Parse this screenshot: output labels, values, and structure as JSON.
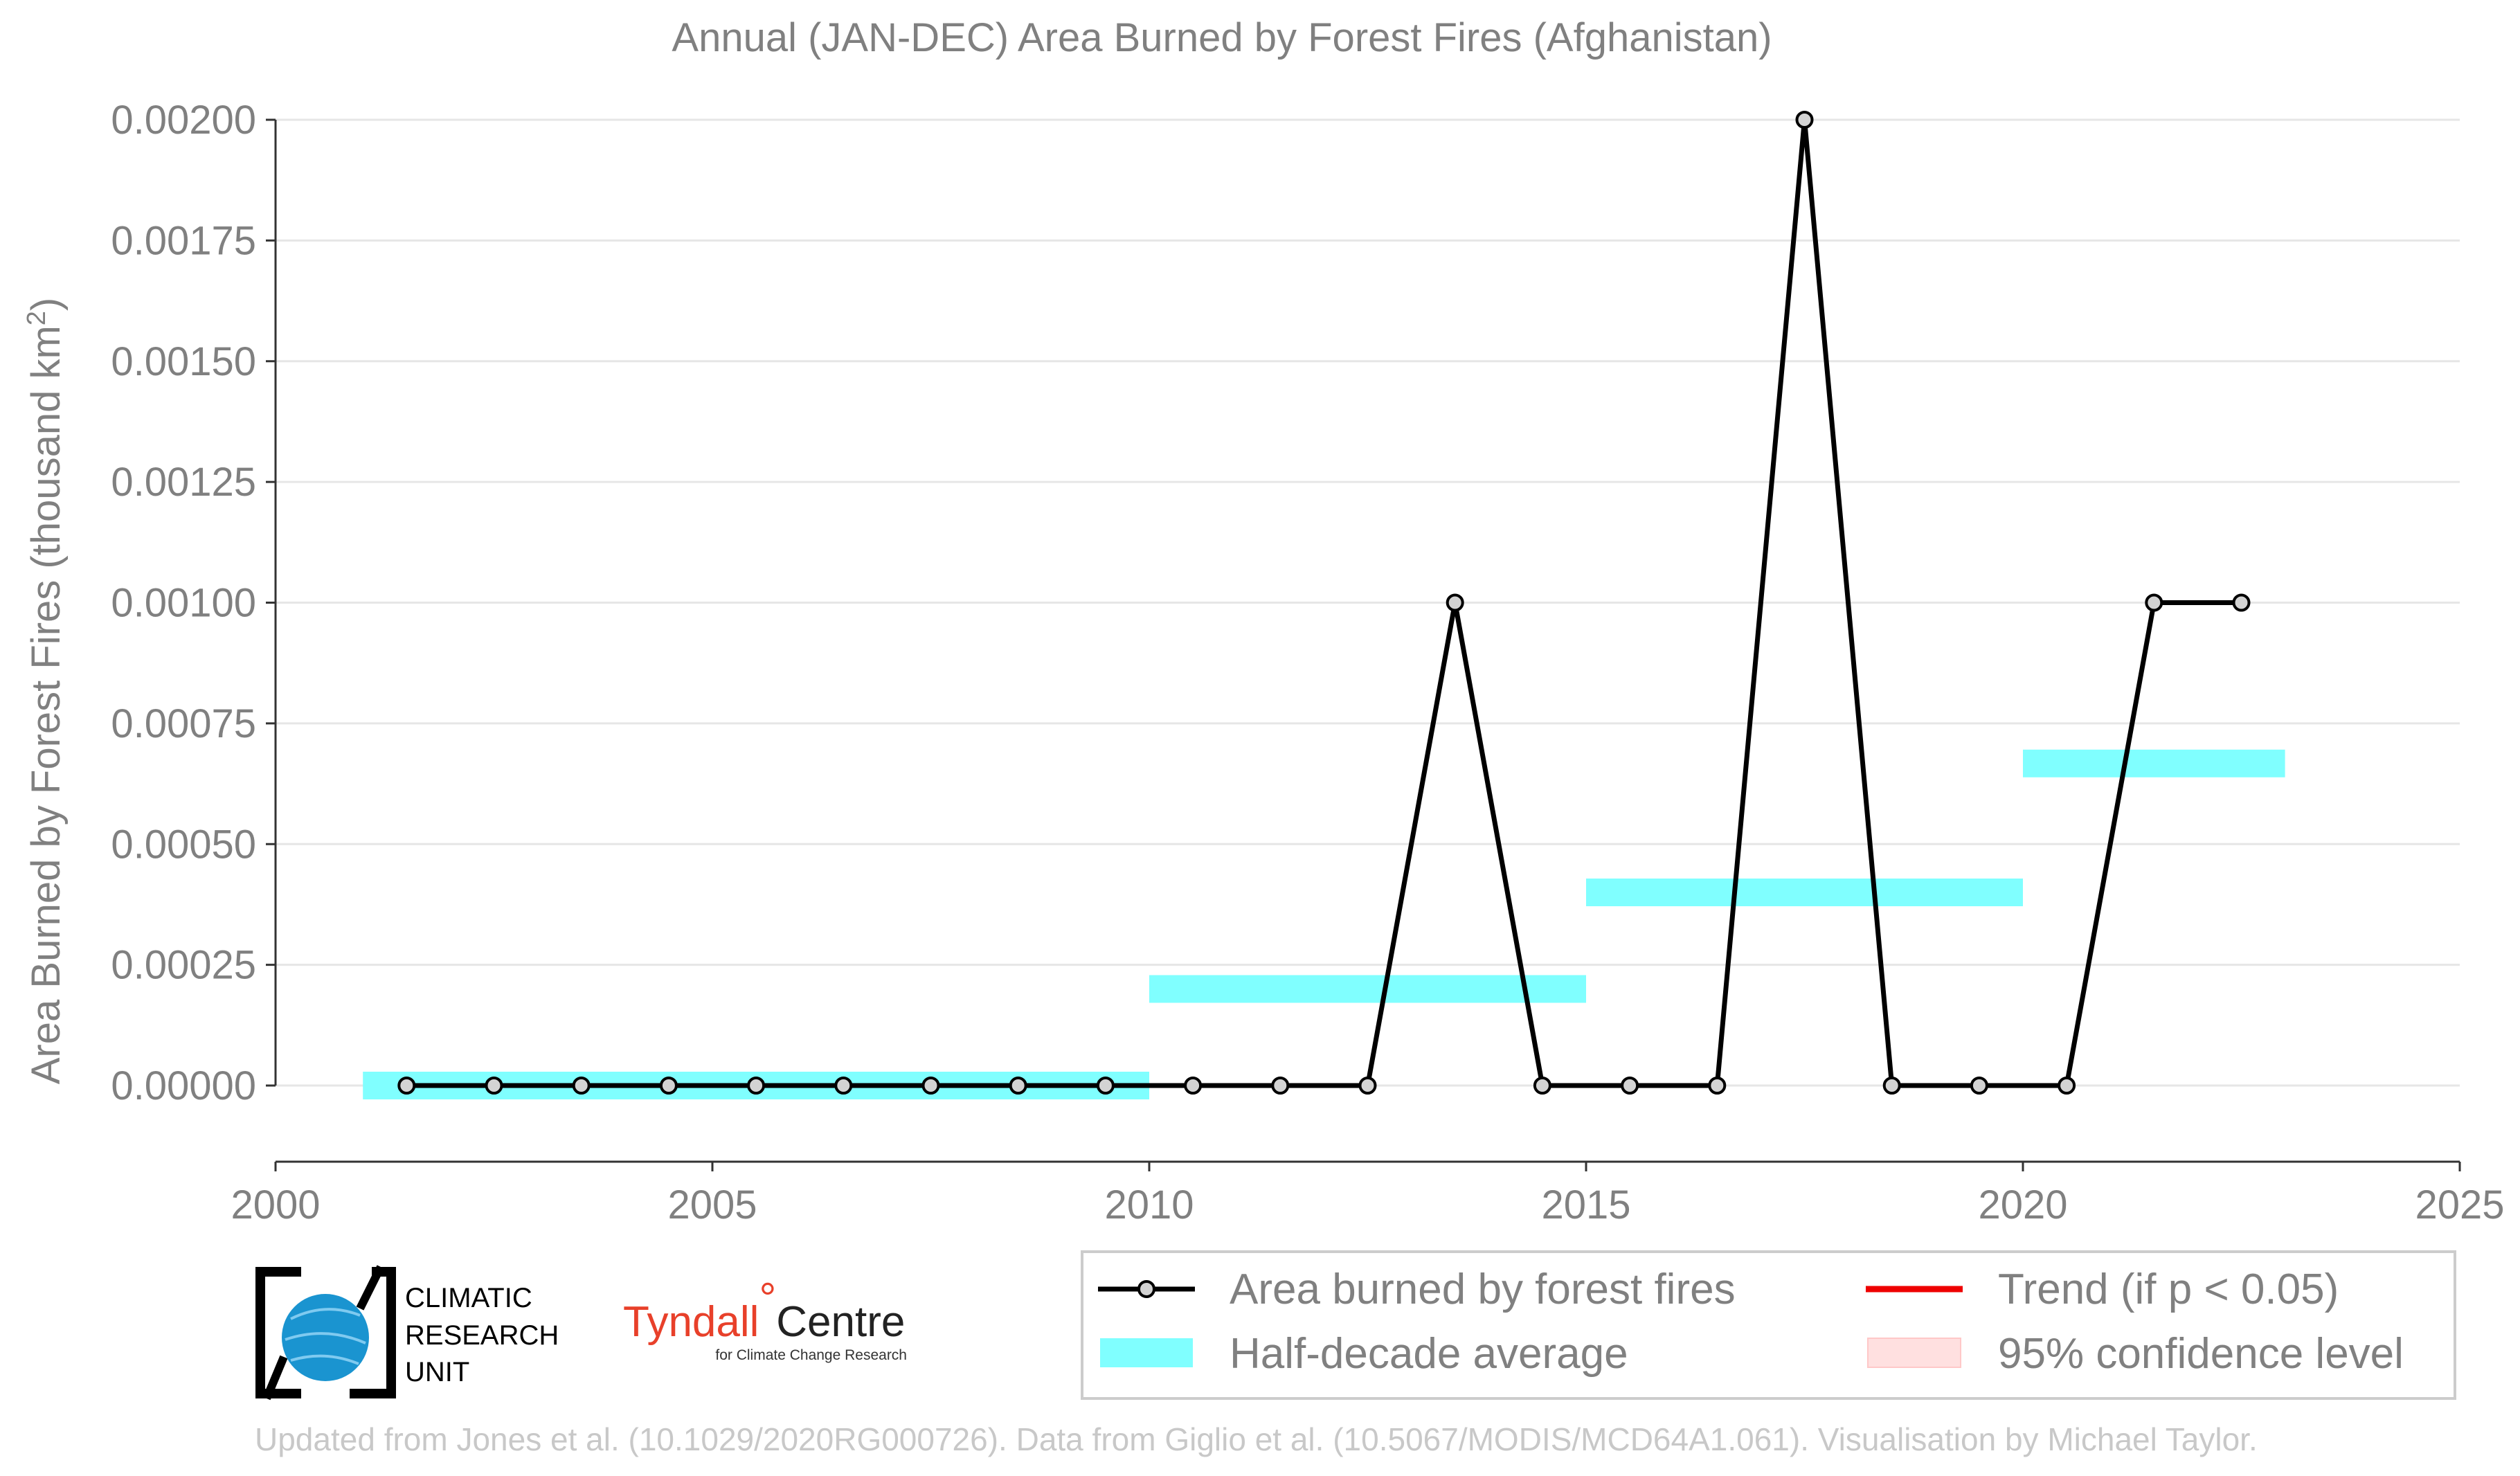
{
  "chart_data": {
    "type": "line",
    "title": "Annual (JAN-DEC) Area Burned by Forest Fires (Afghanistan)",
    "ylabel": "Area Burned by Forest Fires (thousand km",
    "ylabel_sup": "2",
    "ylabel_end": ")",
    "xlim": [
      2000,
      2025
    ],
    "ylim": [
      -0.00015,
      0.002
    ],
    "x_ticks": [
      2000,
      2005,
      2010,
      2015,
      2020,
      2025
    ],
    "y_ticks": [
      "0.00000",
      "0.00025",
      "0.00050",
      "0.00075",
      "0.00100",
      "0.00125",
      "0.00150",
      "0.00175",
      "0.00200"
    ],
    "y_tick_values": [
      0,
      0.00025,
      0.0005,
      0.00075,
      0.001,
      0.00125,
      0.0015,
      0.00175,
      0.002
    ],
    "grid": "horizontal",
    "series": [
      {
        "name": "Area burned by forest fires",
        "color": "#000000",
        "x": [
          2001.5,
          2002.5,
          2003.5,
          2004.5,
          2005.5,
          2006.5,
          2007.5,
          2008.5,
          2009.5,
          2010.5,
          2011.5,
          2012.5,
          2013.5,
          2014.5,
          2015.5,
          2016.5,
          2017.5,
          2018.5,
          2019.5,
          2020.5,
          2021.5,
          2022.5
        ],
        "values": [
          0,
          0,
          0,
          0,
          0,
          0,
          0,
          0,
          0,
          0,
          0,
          0,
          0.001,
          0,
          0,
          0,
          0.002,
          0,
          0,
          0,
          0.001,
          0.001
        ]
      }
    ],
    "half_decade_averages": [
      {
        "start": 2001,
        "end": 2010,
        "value": 0
      },
      {
        "start": 2010,
        "end": 2015,
        "value": 0.0002
      },
      {
        "start": 2015,
        "end": 2020,
        "value": 0.0004
      },
      {
        "start": 2020,
        "end": 2023,
        "value": 0.000667
      }
    ],
    "half_decade_color": "#80ffff",
    "legend": {
      "placement": "bottom-right",
      "items": [
        {
          "label": "Area burned by forest fires",
          "color": "#000000"
        },
        {
          "label": "Half-decade average",
          "color": "#80ffff"
        },
        {
          "label": "Trend (if p < 0.05)",
          "color": "#ee0000"
        },
        {
          "label": "95% confidence level",
          "color": "#ffe0e0"
        }
      ]
    }
  },
  "logos": {
    "cru_line1": "CLIMATIC",
    "cru_line2": "RESEARCH",
    "cru_line3": "UNIT",
    "tyndall_main_red": "Tyndall",
    "tyndall_degree": "°",
    "tyndall_main_dark": "Centre",
    "tyndall_sub": "for Climate Change Research"
  },
  "footer": "Updated from Jones et al. (10.1029/2020RG000726). Data from Giglio et al. (10.5067/MODIS/MCD64A1.061). Visualisation by Michael Taylor."
}
